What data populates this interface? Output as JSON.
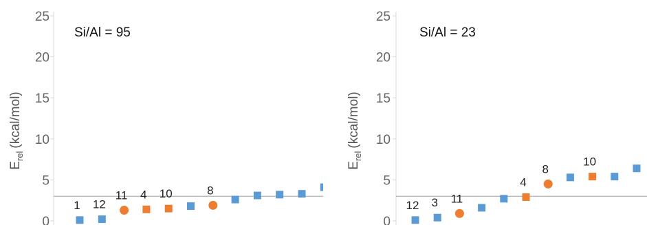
{
  "chart_data": [
    {
      "type": "scatter",
      "annotation": "Si/Al = 95",
      "ylabel_main": "E",
      "ylabel_sub": "rel",
      "ylabel_unit": "(kcal/mol)",
      "yticks": [
        "0",
        "5",
        "10",
        "15",
        "20",
        "25"
      ],
      "ylim": [
        0,
        25
      ],
      "reference_line_y": 3,
      "colors": {
        "blue": "#5b9bd5",
        "orange": "#ed7d31"
      },
      "points": [
        {
          "x": 1,
          "y": 0.1,
          "label": "1",
          "color": "blue",
          "marker": "square"
        },
        {
          "x": 2,
          "y": 0.2,
          "label": "12",
          "color": "blue",
          "marker": "square"
        },
        {
          "x": 3,
          "y": 1.3,
          "label": "11",
          "color": "orange",
          "marker": "circle"
        },
        {
          "x": 4,
          "y": 1.4,
          "label": "4",
          "color": "orange",
          "marker": "square"
        },
        {
          "x": 5,
          "y": 1.5,
          "label": "10",
          "color": "orange",
          "marker": "square"
        },
        {
          "x": 6,
          "y": 1.8,
          "label": "",
          "color": "blue",
          "marker": "square"
        },
        {
          "x": 7,
          "y": 1.9,
          "label": "8",
          "color": "orange",
          "marker": "circle"
        },
        {
          "x": 8,
          "y": 2.6,
          "label": "",
          "color": "blue",
          "marker": "square"
        },
        {
          "x": 9,
          "y": 3.1,
          "label": "",
          "color": "blue",
          "marker": "square"
        },
        {
          "x": 10,
          "y": 3.2,
          "label": "",
          "color": "blue",
          "marker": "square"
        },
        {
          "x": 11,
          "y": 3.3,
          "label": "",
          "color": "blue",
          "marker": "square"
        },
        {
          "x": 12,
          "y": 4.1,
          "label": "",
          "color": "blue",
          "marker": "square"
        }
      ]
    },
    {
      "type": "scatter",
      "annotation": "Si/Al = 23",
      "ylabel_main": "E",
      "ylabel_sub": "rel",
      "ylabel_unit": "(kcal/mol)",
      "yticks": [
        "0",
        "5",
        "10",
        "15",
        "20",
        "25"
      ],
      "ylim": [
        0,
        25
      ],
      "reference_line_y": 3,
      "colors": {
        "blue": "#5b9bd5",
        "orange": "#ed7d31"
      },
      "points": [
        {
          "x": 1,
          "y": 0.1,
          "label": "12",
          "color": "blue",
          "marker": "square"
        },
        {
          "x": 2,
          "y": 0.4,
          "label": "3",
          "color": "blue",
          "marker": "square"
        },
        {
          "x": 3,
          "y": 0.9,
          "label": "11",
          "color": "orange",
          "marker": "circle"
        },
        {
          "x": 4,
          "y": 1.6,
          "label": "",
          "color": "blue",
          "marker": "square"
        },
        {
          "x": 5,
          "y": 2.7,
          "label": "",
          "color": "blue",
          "marker": "square"
        },
        {
          "x": 6,
          "y": 2.9,
          "label": "4",
          "color": "orange",
          "marker": "square"
        },
        {
          "x": 7,
          "y": 4.5,
          "label": "8",
          "color": "orange",
          "marker": "circle"
        },
        {
          "x": 8,
          "y": 5.3,
          "label": "",
          "color": "blue",
          "marker": "square"
        },
        {
          "x": 9,
          "y": 5.4,
          "label": "10",
          "color": "orange",
          "marker": "square"
        },
        {
          "x": 10,
          "y": 5.4,
          "label": "",
          "color": "blue",
          "marker": "square"
        },
        {
          "x": 11,
          "y": 6.4,
          "label": "",
          "color": "blue",
          "marker": "square"
        }
      ]
    }
  ]
}
